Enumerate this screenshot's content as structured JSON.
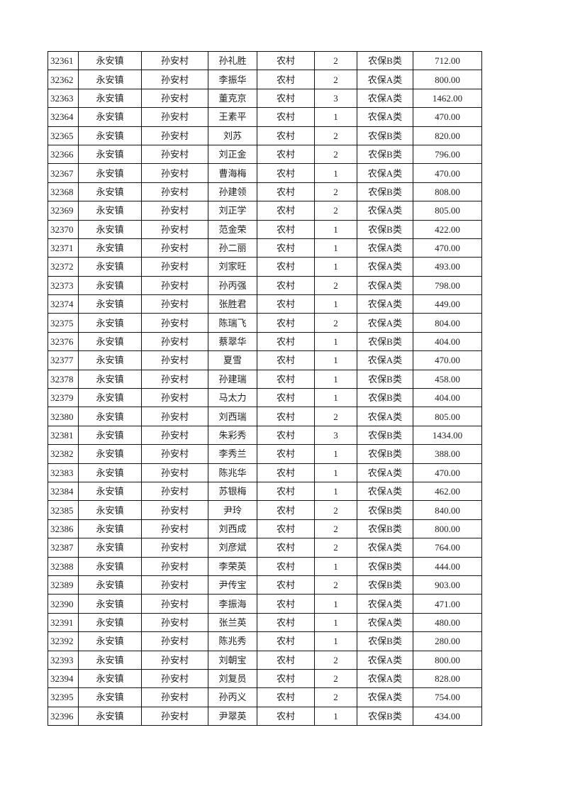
{
  "table": {
    "rows": [
      [
        "32361",
        "永安镇",
        "孙安村",
        "孙礼胜",
        "农村",
        "2",
        "农保B类",
        "712.00"
      ],
      [
        "32362",
        "永安镇",
        "孙安村",
        "李振华",
        "农村",
        "2",
        "农保A类",
        "800.00"
      ],
      [
        "32363",
        "永安镇",
        "孙安村",
        "董克京",
        "农村",
        "3",
        "农保A类",
        "1462.00"
      ],
      [
        "32364",
        "永安镇",
        "孙安村",
        "王素平",
        "农村",
        "1",
        "农保A类",
        "470.00"
      ],
      [
        "32365",
        "永安镇",
        "孙安村",
        "刘苏",
        "农村",
        "2",
        "农保B类",
        "820.00"
      ],
      [
        "32366",
        "永安镇",
        "孙安村",
        "刘正金",
        "农村",
        "2",
        "农保B类",
        "796.00"
      ],
      [
        "32367",
        "永安镇",
        "孙安村",
        "曹海梅",
        "农村",
        "1",
        "农保A类",
        "470.00"
      ],
      [
        "32368",
        "永安镇",
        "孙安村",
        "孙建领",
        "农村",
        "2",
        "农保B类",
        "808.00"
      ],
      [
        "32369",
        "永安镇",
        "孙安村",
        "刘正学",
        "农村",
        "2",
        "农保A类",
        "805.00"
      ],
      [
        "32370",
        "永安镇",
        "孙安村",
        "范金荣",
        "农村",
        "1",
        "农保B类",
        "422.00"
      ],
      [
        "32371",
        "永安镇",
        "孙安村",
        "孙二丽",
        "农村",
        "1",
        "农保A类",
        "470.00"
      ],
      [
        "32372",
        "永安镇",
        "孙安村",
        "刘家旺",
        "农村",
        "1",
        "农保A类",
        "493.00"
      ],
      [
        "32373",
        "永安镇",
        "孙安村",
        "孙丙强",
        "农村",
        "2",
        "农保A类",
        "798.00"
      ],
      [
        "32374",
        "永安镇",
        "孙安村",
        "张胜君",
        "农村",
        "1",
        "农保A类",
        "449.00"
      ],
      [
        "32375",
        "永安镇",
        "孙安村",
        "陈瑞飞",
        "农村",
        "2",
        "农保A类",
        "804.00"
      ],
      [
        "32376",
        "永安镇",
        "孙安村",
        "蔡翠华",
        "农村",
        "1",
        "农保B类",
        "404.00"
      ],
      [
        "32377",
        "永安镇",
        "孙安村",
        "夏雪",
        "农村",
        "1",
        "农保A类",
        "470.00"
      ],
      [
        "32378",
        "永安镇",
        "孙安村",
        "孙建瑞",
        "农村",
        "1",
        "农保B类",
        "458.00"
      ],
      [
        "32379",
        "永安镇",
        "孙安村",
        "马太力",
        "农村",
        "1",
        "农保B类",
        "404.00"
      ],
      [
        "32380",
        "永安镇",
        "孙安村",
        "刘西瑞",
        "农村",
        "2",
        "农保A类",
        "805.00"
      ],
      [
        "32381",
        "永安镇",
        "孙安村",
        "朱彩秀",
        "农村",
        "3",
        "农保B类",
        "1434.00"
      ],
      [
        "32382",
        "永安镇",
        "孙安村",
        "李秀兰",
        "农村",
        "1",
        "农保B类",
        "388.00"
      ],
      [
        "32383",
        "永安镇",
        "孙安村",
        "陈兆华",
        "农村",
        "1",
        "农保A类",
        "470.00"
      ],
      [
        "32384",
        "永安镇",
        "孙安村",
        "苏银梅",
        "农村",
        "1",
        "农保A类",
        "462.00"
      ],
      [
        "32385",
        "永安镇",
        "孙安村",
        "尹玲",
        "农村",
        "2",
        "农保B类",
        "840.00"
      ],
      [
        "32386",
        "永安镇",
        "孙安村",
        "刘西成",
        "农村",
        "2",
        "农保B类",
        "800.00"
      ],
      [
        "32387",
        "永安镇",
        "孙安村",
        "刘彦斌",
        "农村",
        "2",
        "农保A类",
        "764.00"
      ],
      [
        "32388",
        "永安镇",
        "孙安村",
        "李荣英",
        "农村",
        "1",
        "农保B类",
        "444.00"
      ],
      [
        "32389",
        "永安镇",
        "孙安村",
        "尹传宝",
        "农村",
        "2",
        "农保B类",
        "903.00"
      ],
      [
        "32390",
        "永安镇",
        "孙安村",
        "李振海",
        "农村",
        "1",
        "农保A类",
        "471.00"
      ],
      [
        "32391",
        "永安镇",
        "孙安村",
        "张兰英",
        "农村",
        "1",
        "农保A类",
        "480.00"
      ],
      [
        "32392",
        "永安镇",
        "孙安村",
        "陈兆秀",
        "农村",
        "1",
        "农保B类",
        "280.00"
      ],
      [
        "32393",
        "永安镇",
        "孙安村",
        "刘朝宝",
        "农村",
        "2",
        "农保A类",
        "800.00"
      ],
      [
        "32394",
        "永安镇",
        "孙安村",
        "刘复员",
        "农村",
        "2",
        "农保A类",
        "828.00"
      ],
      [
        "32395",
        "永安镇",
        "孙安村",
        "孙丙义",
        "农村",
        "2",
        "农保A类",
        "754.00"
      ],
      [
        "32396",
        "永安镇",
        "孙安村",
        "尹翠英",
        "农村",
        "1",
        "农保B类",
        "434.00"
      ]
    ]
  }
}
